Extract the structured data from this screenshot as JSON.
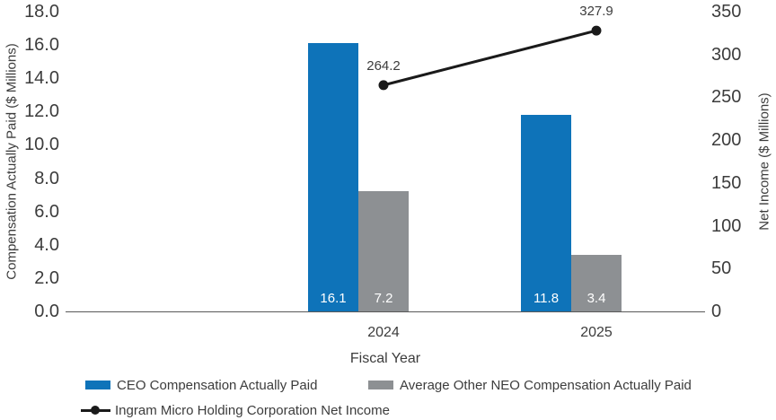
{
  "chart_data": {
    "type": "combo-bar-line",
    "categories": [
      "2024",
      "2025"
    ],
    "series": [
      {
        "name": "CEO Compensation Actually Paid",
        "type": "bar",
        "axis": "left",
        "color": "#0e73b9",
        "values": [
          16.1,
          11.8
        ]
      },
      {
        "name": "Average Other NEO Compensation Actually Paid",
        "type": "bar",
        "axis": "left",
        "color": "#8d9093",
        "values": [
          7.2,
          3.4
        ]
      },
      {
        "name": "Ingram Micro Holding Corporation Net Income",
        "type": "line",
        "axis": "right",
        "color": "#1a1a1a",
        "values": [
          264.2,
          327.9
        ]
      }
    ],
    "xlabel": "Fiscal Year",
    "y_left": {
      "label": "Compensation Actually Paid ($ Millions)",
      "min": 0,
      "max": 18,
      "step": 2,
      "decimals": 1
    },
    "y_right": {
      "label": "Net Income ($ Millions)",
      "min": 0,
      "max": 350,
      "step": 50,
      "decimals": 0
    },
    "grid": false,
    "legend_position": "bottom-left"
  }
}
